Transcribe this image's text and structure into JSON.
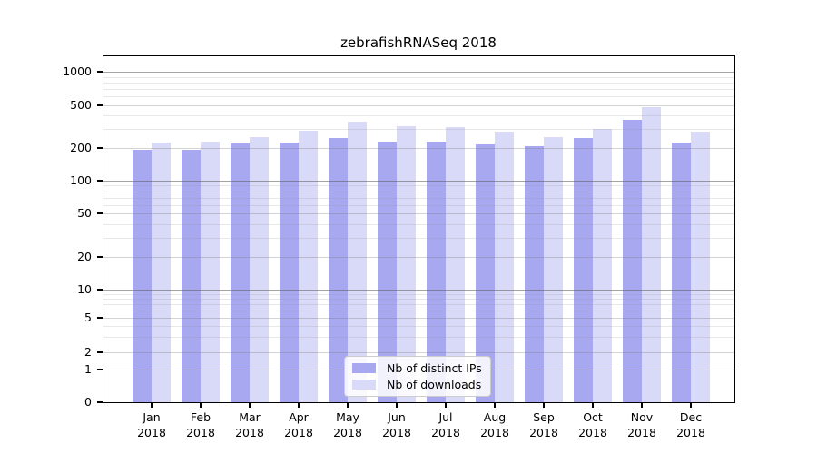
{
  "chart_data": {
    "type": "bar",
    "title": "zebrafishRNASeq 2018",
    "categories": [
      "Jan",
      "Feb",
      "Mar",
      "Apr",
      "May",
      "Jun",
      "Jul",
      "Aug",
      "Sep",
      "Oct",
      "Nov",
      "Dec"
    ],
    "category_year": "2018",
    "series": [
      {
        "name": "Nb of distinct IPs",
        "color": "#a8a8f1",
        "values": [
          192,
          193,
          221,
          225,
          246,
          228,
          228,
          215,
          207,
          246,
          369,
          225
        ]
      },
      {
        "name": "Nb of downloads",
        "color": "#d9d9f8",
        "values": [
          224,
          230,
          253,
          291,
          353,
          318,
          315,
          282,
          253,
          304,
          485,
          282
        ]
      }
    ],
    "y_axis": {
      "scale": "log-like with zero baseline",
      "ticks": [
        1000,
        500,
        200,
        100,
        50,
        20,
        10,
        5,
        2,
        1,
        0
      ],
      "minor_gridlines": [
        3,
        4,
        6,
        7,
        8,
        9,
        30,
        40,
        60,
        70,
        80,
        90,
        300,
        400,
        600,
        700,
        800,
        900
      ]
    },
    "xlabel": "",
    "ylabel": "",
    "legend_position": "lower center",
    "grid": "horizontal major and minor gridlines drawn over bars"
  },
  "colors": {
    "background": "#ffffff",
    "spine": "#000000",
    "ips_bar": "#a8a8f1",
    "downloads_bar": "#d9d9f8",
    "legend_border": "#cccccc"
  }
}
